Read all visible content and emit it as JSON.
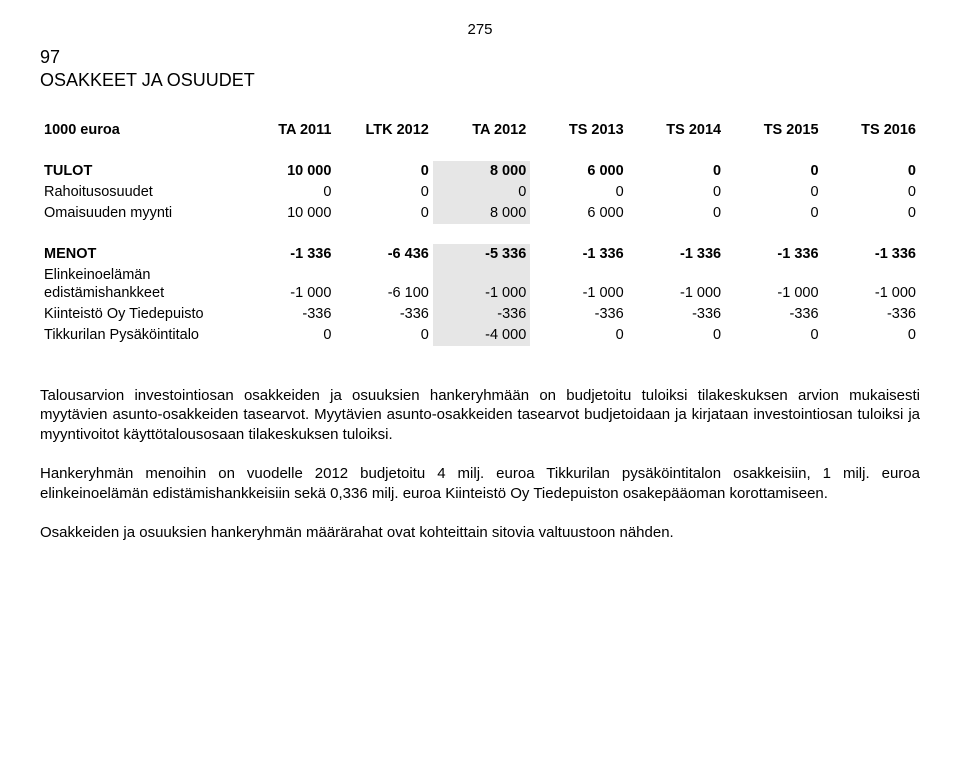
{
  "page_number": "275",
  "section_number": "97",
  "section_title": "OSAKKEET JA OSUUDET",
  "table": {
    "unit": "1000 euroa",
    "columns": [
      "TA 2011",
      "LTK 2012",
      "TA 2012",
      "TS 2013",
      "TS 2014",
      "TS 2015",
      "TS 2016"
    ],
    "groups": [
      {
        "header": {
          "label": "TULOT",
          "values": [
            "10 000",
            "0",
            "8 000",
            "6 000",
            "0",
            "0",
            "0"
          ]
        },
        "rows": [
          {
            "label": "Rahoitusosuudet",
            "values": [
              "0",
              "0",
              "0",
              "0",
              "0",
              "0",
              "0"
            ]
          },
          {
            "label": "Omaisuuden myynti",
            "values": [
              "10 000",
              "0",
              "8 000",
              "6 000",
              "0",
              "0",
              "0"
            ]
          }
        ]
      },
      {
        "header": {
          "label": "MENOT",
          "values": [
            "-1 336",
            "-6 436",
            "-5 336",
            "-1 336",
            "-1 336",
            "-1 336",
            "-1 336"
          ]
        },
        "rows": [
          {
            "label": "Elinkeinoelämän edistämishankkeet",
            "wrap": true,
            "values": [
              "-1 000",
              "-6 100",
              "-1 000",
              "-1 000",
              "-1 000",
              "-1 000",
              "-1 000"
            ]
          },
          {
            "label": "Kiinteistö Oy Tiedepuisto",
            "values": [
              "-336",
              "-336",
              "-336",
              "-336",
              "-336",
              "-336",
              "-336"
            ]
          },
          {
            "label": "Tikkurilan Pysäköintitalo",
            "values": [
              "0",
              "0",
              "-4 000",
              "0",
              "0",
              "0",
              "0"
            ]
          }
        ]
      }
    ],
    "highlight_col_index": 2
  },
  "paragraphs": [
    "Talousarvion investointiosan osakkeiden ja osuuksien hankeryhmään on budjetoitu tuloiksi tilakeskuksen arvion mukaisesti myytävien asunto-osakkeiden tasearvot. Myytävien asunto-osakkeiden tasearvot budjetoidaan ja kirjataan investointiosan tuloiksi ja myyntivoitot käyttötalousosaan tilakeskuksen tuloiksi.",
    "Hankeryhmän menoihin on vuodelle 2012 budjetoitu 4 milj. euroa Tikkurilan pysäköintitalon osakkeisiin, 1 milj. euroa elinkeinoelämän edistämishankkeisiin sekä 0,336 milj. euroa Kiinteistö Oy Tiedepuiston osakepääoman korottamiseen.",
    "Osakkeiden ja osuuksien hankeryhmän määrärahat ovat kohteittain sitovia valtuustoon nähden."
  ]
}
